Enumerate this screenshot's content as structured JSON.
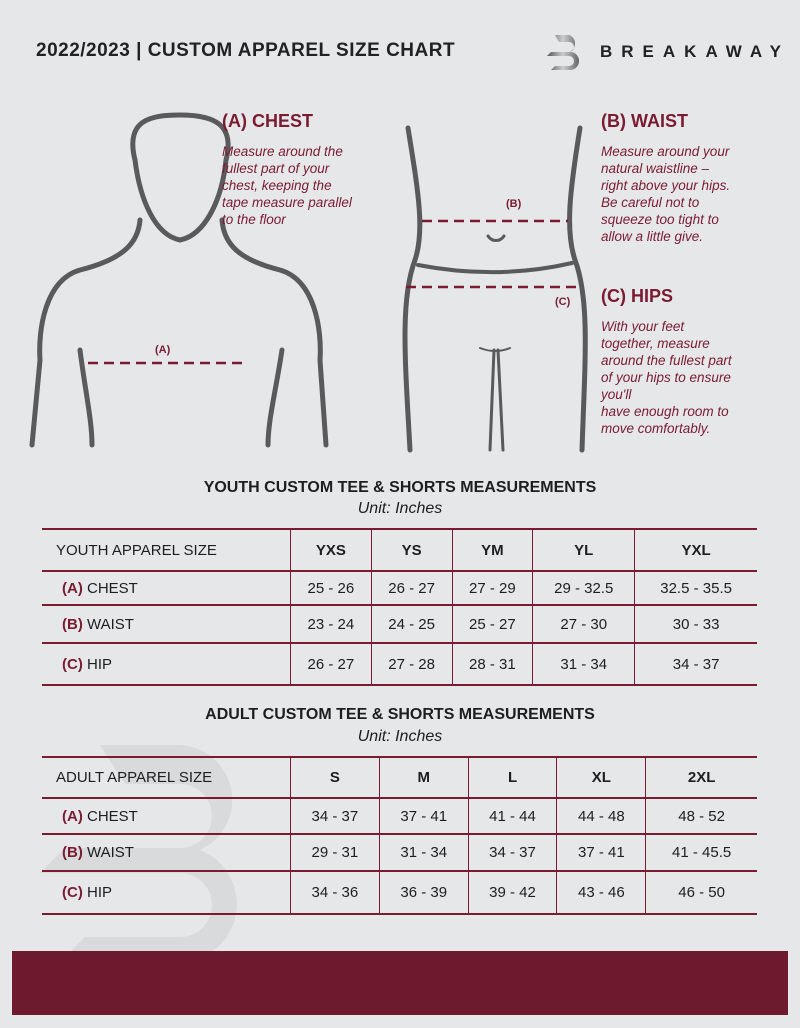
{
  "header": {
    "title": "2022/2023  |  CUSTOM APPAREL SIZE CHART",
    "brand": "BREAKAWAY"
  },
  "colors": {
    "accent": "#7a1b32",
    "background": "#e6e7e9",
    "footer": "#6d1a2e"
  },
  "chest": {
    "heading": "(A) CHEST",
    "marker": "(A)",
    "text": "Measure around the\nfullest part of your\nchest, keeping the\ntape measure parallel\nto the floor"
  },
  "waist": {
    "heading": "(B) WAIST",
    "marker": "(B)",
    "text": "Measure around your\nnatural waistline –\nright above your hips.\nBe careful not to\nsqueeze too tight to\nallow a little give."
  },
  "hips": {
    "heading": "(C) HIPS",
    "marker": "(C)",
    "text": "With your feet\ntogether, measure\naround the fullest part\nof your hips to ensure\nyou'll\nhave enough room to\nmove comfortably."
  },
  "youth": {
    "title": "YOUTH CUSTOM TEE & SHORTS MEASUREMENTS",
    "unit": "Unit: Inches",
    "header_label": "YOUTH APPAREL SIZE",
    "sizes": [
      "YXS",
      "YS",
      "YM",
      "YL",
      "YXL"
    ],
    "rows": [
      {
        "letter": "(A)",
        "name": "CHEST",
        "values": [
          "25 - 26",
          "26 - 27",
          "27 - 29",
          "29 - 32.5",
          "32.5 - 35.5"
        ]
      },
      {
        "letter": "(B)",
        "name": "WAIST",
        "values": [
          "23 - 24",
          "24 - 25",
          "25 - 27",
          "27 - 30",
          "30 - 33"
        ]
      },
      {
        "letter": "(C)",
        "name": "HIP",
        "values": [
          "26 - 27",
          "27 - 28",
          "28 - 31",
          "31 - 34",
          "34 - 37"
        ]
      }
    ]
  },
  "adult": {
    "title": "ADULT CUSTOM TEE & SHORTS MEASUREMENTS",
    "unit": "Unit: Inches",
    "header_label": "ADULT APPAREL SIZE",
    "sizes": [
      "S",
      "M",
      "L",
      "XL",
      "2XL"
    ],
    "rows": [
      {
        "letter": "(A)",
        "name": "CHEST",
        "values": [
          "34 - 37",
          "37 - 41",
          "41 - 44",
          "44 - 48",
          "48 - 52"
        ]
      },
      {
        "letter": "(B)",
        "name": "WAIST",
        "values": [
          "29 - 31",
          "31 - 34",
          "34 - 37",
          "37 - 41",
          "41 - 45.5"
        ]
      },
      {
        "letter": "(C)",
        "name": "HIP",
        "values": [
          "34 - 36",
          "36 - 39",
          "39 - 42",
          "43 - 46",
          "46 - 50"
        ]
      }
    ]
  }
}
